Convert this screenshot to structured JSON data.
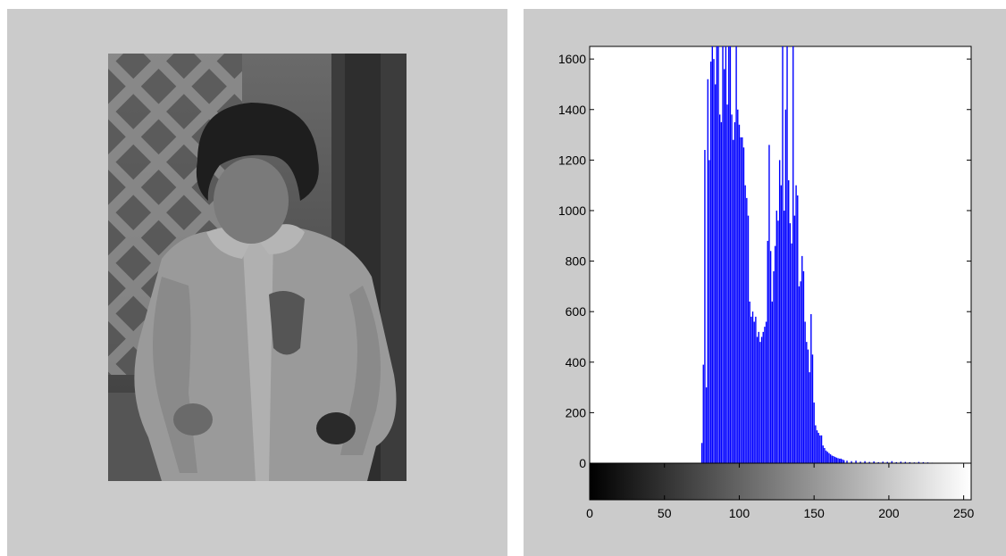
{
  "figure": {
    "image_description_icon": "grayscale-photo",
    "background": "#cbcbcb"
  },
  "chart_data": {
    "type": "bar",
    "title": "",
    "xlabel": "",
    "ylabel": "",
    "xlim": [
      0,
      255
    ],
    "ylim": [
      0,
      1650
    ],
    "x_ticks": [
      0,
      50,
      100,
      150,
      200,
      250
    ],
    "y_ticks": [
      0,
      200,
      400,
      600,
      800,
      1000,
      1200,
      1400,
      1600
    ],
    "colorbar": {
      "from": "#000000",
      "to": "#ffffff",
      "range": [
        0,
        255
      ]
    },
    "bar_color": "#0000ff",
    "bins": [
      75,
      76,
      77,
      78,
      79,
      80,
      81,
      82,
      83,
      84,
      85,
      86,
      87,
      88,
      89,
      90,
      91,
      92,
      93,
      94,
      95,
      96,
      97,
      98,
      99,
      100,
      101,
      102,
      103,
      104,
      105,
      106,
      107,
      108,
      109,
      110,
      111,
      112,
      113,
      114,
      115,
      116,
      117,
      118,
      119,
      120,
      121,
      122,
      123,
      124,
      125,
      126,
      127,
      128,
      129,
      130,
      131,
      132,
      133,
      134,
      135,
      136,
      137,
      138,
      139,
      140,
      141,
      142,
      143,
      144,
      145,
      146,
      147,
      148,
      149,
      150,
      151,
      152,
      153,
      154,
      155,
      156,
      157,
      158,
      159,
      160,
      161,
      162,
      163,
      164,
      165,
      166,
      167,
      168,
      169,
      170,
      172,
      175,
      178,
      181,
      184,
      187,
      190,
      193,
      196,
      199,
      202,
      205,
      208,
      211,
      214,
      217,
      220,
      223,
      226,
      229
    ],
    "counts": [
      80,
      390,
      1240,
      300,
      1520,
      1200,
      1590,
      1650,
      1600,
      1500,
      1650,
      1650,
      1380,
      1350,
      1650,
      1560,
      1650,
      1420,
      1650,
      1650,
      1380,
      1280,
      1350,
      1650,
      1400,
      1340,
      1290,
      1290,
      1250,
      1100,
      1050,
      980,
      640,
      580,
      600,
      560,
      580,
      500,
      520,
      480,
      500,
      520,
      540,
      560,
      880,
      1260,
      840,
      640,
      760,
      860,
      1000,
      960,
      1200,
      1100,
      1650,
      1000,
      1400,
      1650,
      1120,
      950,
      870,
      1650,
      980,
      1100,
      1060,
      700,
      720,
      820,
      760,
      560,
      480,
      450,
      360,
      590,
      430,
      240,
      150,
      130,
      120,
      110,
      110,
      70,
      60,
      50,
      45,
      40,
      35,
      30,
      28,
      25,
      22,
      20,
      18,
      18,
      15,
      12,
      10,
      8,
      10,
      6,
      8,
      5,
      7,
      4,
      6,
      5,
      8,
      4,
      6,
      5,
      4,
      3,
      5,
      4,
      3,
      2
    ]
  }
}
